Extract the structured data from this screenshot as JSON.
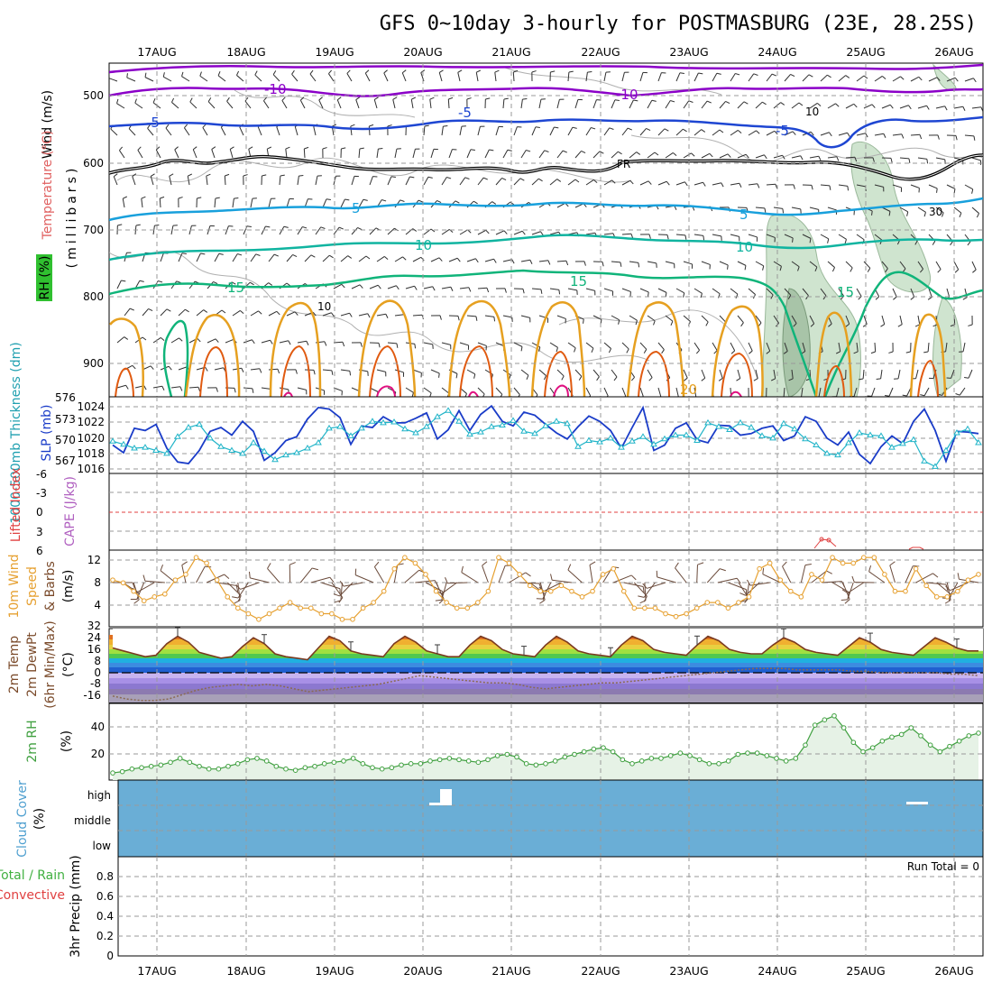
{
  "header": {
    "title": "GFS 0~10day 3-hourly for POSTMASBURG (23E, 28.25S)"
  },
  "dates": [
    "17AUG",
    "18AUG",
    "19AUG",
    "20AUG",
    "21AUG",
    "22AUG",
    "23AUG",
    "24AUG",
    "25AUG",
    "26AUG"
  ],
  "colors": {
    "temp_m10": "#8b00c8",
    "temp_m5": "#1e46d2",
    "temp_0": "#000000",
    "temp_5": "#18a0dc",
    "temp_10": "#10b4a0",
    "temp_15": "#10b47a",
    "temp_warm": "#e6a020",
    "temp_hot": "#e05a10",
    "temp_20": "#e01080",
    "rh": "#b4d2b4",
    "slp": "#1a3cc8",
    "thickness": "#20b4c8",
    "wind10": "#e6a030",
    "tmax_fill": "#50c850",
    "cloud_bg": "#6aaed6",
    "rh2m": "#40a040"
  },
  "panels": {
    "upper": {
      "axis_labels": [
        "Wind (m/s)",
        "Temperature (°C)",
        "(millibars)",
        "RH (%)"
      ],
      "pressure_ticks": [
        "500",
        "600",
        "700",
        "800",
        "900"
      ],
      "contour_labels": [
        "-10",
        "-10",
        "-5",
        "-5",
        "-5",
        "FR",
        "5",
        "5",
        "10",
        "10",
        "15",
        "15",
        "15",
        "20",
        "10",
        "10",
        "30"
      ]
    },
    "slp": {
      "axis_labels": [
        "1000-500mb Thickness (dm)",
        "SLP (mb)"
      ],
      "thickness_ticks": [
        "576",
        "573",
        "570",
        "567"
      ],
      "slp_ticks": [
        "1024",
        "1022",
        "1020",
        "1018",
        "1016"
      ]
    },
    "li": {
      "axis_labels": [
        "Lifted Index",
        "CAPE (J/kg)"
      ],
      "ticks": [
        "-6",
        "-3",
        "0",
        "3",
        "6"
      ]
    },
    "wind10": {
      "axis_labels": [
        "10m Wind",
        "Speed",
        "& Barbs",
        "(m/s)"
      ],
      "ticks": [
        "12",
        "8",
        "4",
        "32"
      ]
    },
    "temp2m": {
      "axis_labels": [
        "2m Temp",
        "2m DewPt",
        "(6hr Min/Max)",
        "(°C)"
      ],
      "ticks": [
        "24",
        "16",
        "8",
        "0",
        "-8",
        "-16"
      ]
    },
    "rh2m": {
      "axis_labels": [
        "2m RH",
        "(%)"
      ],
      "ticks": [
        "40",
        "20"
      ]
    },
    "cloud": {
      "axis_labels": [
        "Cloud Cover",
        "(%)"
      ],
      "levels": [
        "high",
        "middle",
        "low"
      ]
    },
    "precip": {
      "axis_labels": [
        "Total / Rain",
        "Convective",
        "3hr Precip (mm)"
      ],
      "ticks": [
        "0.8",
        "0.6",
        "0.4",
        "0.2",
        "0"
      ],
      "run_total": "Run Total = 0"
    }
  },
  "chart_data": [
    {
      "type": "line",
      "title": "SLP (mb)",
      "x_unit": "3-hourly steps from 16AUG 12Z",
      "ylim": [
        1015,
        1025
      ],
      "series": [
        {
          "name": "SLP (mb)",
          "values": [
            1018.7,
            1017.7,
            1020.9,
            1020.6,
            1021.4,
            1018.3,
            1016.5,
            1016.3,
            1018.0,
            1020.5,
            1021.0,
            1020.0,
            1021.8,
            1020.5,
            1016.7,
            1017.7,
            1019.3,
            1019.8,
            1022.1,
            1023.6,
            1023.4,
            1022.3,
            1018.8,
            1021.2,
            1021.0,
            1022.4,
            1021.6,
            1021.6,
            1022.2,
            1022.9,
            1019.5,
            1020.7,
            1023.2,
            1020.6,
            1022.7,
            1023.8,
            1021.8,
            1021.2,
            1023.0,
            1022.6,
            1021.4,
            1020.3,
            1019.5,
            1021.1,
            1022.5,
            1021.8,
            1020.6,
            1018.3,
            1021.0,
            1023.6,
            1018.0,
            1018.7,
            1020.9,
            1021.6,
            1019.4,
            1019.0,
            1021.3,
            1021.2,
            1020.0,
            1020.2,
            1020.9,
            1021.2,
            1019.3,
            1019.9,
            1022.4,
            1021.8,
            1019.6,
            1018.7,
            1020.4,
            1017.5,
            1016.3,
            1018.5,
            1019.9,
            1018.9,
            1021.8,
            1023.4,
            1020.6,
            1016.6,
            1020.5,
            1020.4,
            1020.2
          ]
        }
      ]
    },
    {
      "type": "line",
      "title": "1000-500mb Thickness (dm)",
      "ylim": [
        566,
        576
      ],
      "series": [
        {
          "name": "1000-500mb Thickness (dm)",
          "values": [
            570.2,
            569.8,
            569.3,
            569.4,
            569.0,
            568.6,
            570.8,
            572.0,
            572.4,
            570.6,
            569.5,
            569.0,
            568.6,
            570.0,
            568.9,
            567.8,
            568.4,
            568.7,
            569.3,
            570.0,
            571.9,
            572.1,
            570.9,
            571.9,
            572.8,
            572.6,
            572.7,
            571.8,
            571.3,
            572.1,
            573.4,
            574.2,
            572.8,
            571.1,
            571.4,
            572.1,
            572.3,
            572.9,
            571.5,
            571.2,
            572.2,
            572.8,
            572.5,
            569.5,
            570.3,
            570.1,
            570.6,
            569.4,
            570.2,
            570.8,
            569.8,
            570.5,
            571.0,
            571.0,
            570.3,
            572.6,
            572.1,
            571.7,
            572.6,
            572.0,
            570.9,
            570.6,
            572.5,
            571.8,
            570.5,
            569.7,
            568.6,
            568.4,
            570.0,
            571.3,
            571.0,
            570.9,
            569.4,
            569.9,
            570.4,
            567.6,
            566.9,
            569.0,
            571.3,
            571.8,
            570.0
          ]
        }
      ]
    },
    {
      "type": "line",
      "title": "10m Wind Speed (m/s)",
      "ylim": [
        0,
        13
      ],
      "series": [
        {
          "name": "10m Wind Speed (m/s)",
          "values": [
            8,
            7.5,
            6,
            4.3,
            5,
            5.5,
            8,
            9,
            12,
            11,
            8,
            5,
            3,
            2,
            1,
            2,
            3,
            4,
            3,
            3,
            2,
            2,
            1,
            1,
            3,
            4,
            6,
            10,
            12,
            11,
            9,
            6,
            4,
            3,
            3,
            4,
            6,
            12,
            11,
            9,
            7,
            6,
            6,
            7,
            6,
            5,
            6,
            9,
            10,
            6,
            3,
            3,
            3,
            2,
            1.5,
            2,
            3,
            4,
            4,
            3,
            4,
            5,
            10,
            11,
            8,
            6,
            5,
            9,
            8,
            12,
            11,
            11,
            12,
            12,
            9,
            6,
            6,
            10,
            7,
            5,
            5,
            6,
            8,
            9
          ]
        }
      ]
    },
    {
      "type": "area",
      "title": "2m Temp (°C)",
      "ylim": [
        -20,
        30
      ],
      "series": [
        {
          "name": "2m Temp (°C)",
          "values": [
            17,
            15,
            13,
            11,
            12,
            20,
            25,
            21,
            14,
            12,
            10,
            11,
            18,
            24,
            20,
            13,
            11,
            10,
            9,
            17,
            25,
            22,
            15,
            13,
            12,
            11,
            20,
            25,
            21,
            15,
            13,
            11,
            11,
            19,
            25,
            22,
            16,
            13,
            12,
            11,
            19,
            25,
            21,
            15,
            13,
            12,
            11,
            19,
            25,
            22,
            16,
            14,
            13,
            12,
            19,
            25,
            22,
            16,
            14,
            13,
            13,
            19,
            24,
            21,
            16,
            14,
            13,
            12,
            18,
            24,
            21,
            16,
            14,
            13,
            12,
            18,
            24,
            21,
            17,
            15,
            15
          ]
        },
        {
          "name": "2m DewPt (°C)",
          "values": [
            -16,
            -18,
            -19,
            -19,
            -18,
            -15,
            -12,
            -10,
            -9,
            -8,
            -9,
            -8,
            -9,
            -11,
            -13,
            -12,
            -11,
            -10,
            -9,
            -8,
            -6,
            -4,
            -2,
            -3,
            -4,
            -5,
            -6,
            -7,
            -7,
            -8,
            -10,
            -11,
            -10,
            -9,
            -8,
            -7,
            -7,
            -6,
            -5,
            -4,
            -3,
            -2,
            -1,
            0,
            1,
            2,
            3,
            3,
            3,
            2,
            2,
            2,
            2,
            1,
            1,
            0,
            0,
            0,
            0,
            0,
            -1,
            -1,
            -2
          ]
        }
      ]
    },
    {
      "type": "area",
      "title": "2m RH (%)",
      "ylim": [
        0,
        55
      ],
      "series": [
        {
          "name": "2m RH (%)",
          "values": [
            4,
            5,
            7,
            8,
            9,
            10,
            12,
            15,
            12,
            9,
            7,
            7,
            9,
            11,
            14,
            15,
            13,
            9,
            7,
            6,
            8,
            9,
            11,
            12,
            13,
            15,
            11,
            8,
            7,
            8,
            10,
            11,
            11,
            13,
            14,
            15,
            14,
            13,
            12,
            14,
            17,
            18,
            16,
            11,
            10,
            11,
            13,
            16,
            18,
            20,
            22,
            23,
            20,
            14,
            11,
            13,
            15,
            15,
            17,
            19,
            17,
            14,
            11,
            11,
            13,
            18,
            19,
            19,
            17,
            15,
            13,
            15,
            25,
            40,
            44,
            47,
            38,
            27,
            20,
            23,
            28,
            31,
            33,
            38,
            32,
            25,
            20,
            24,
            28,
            32,
            34
          ]
        }
      ]
    }
  ]
}
